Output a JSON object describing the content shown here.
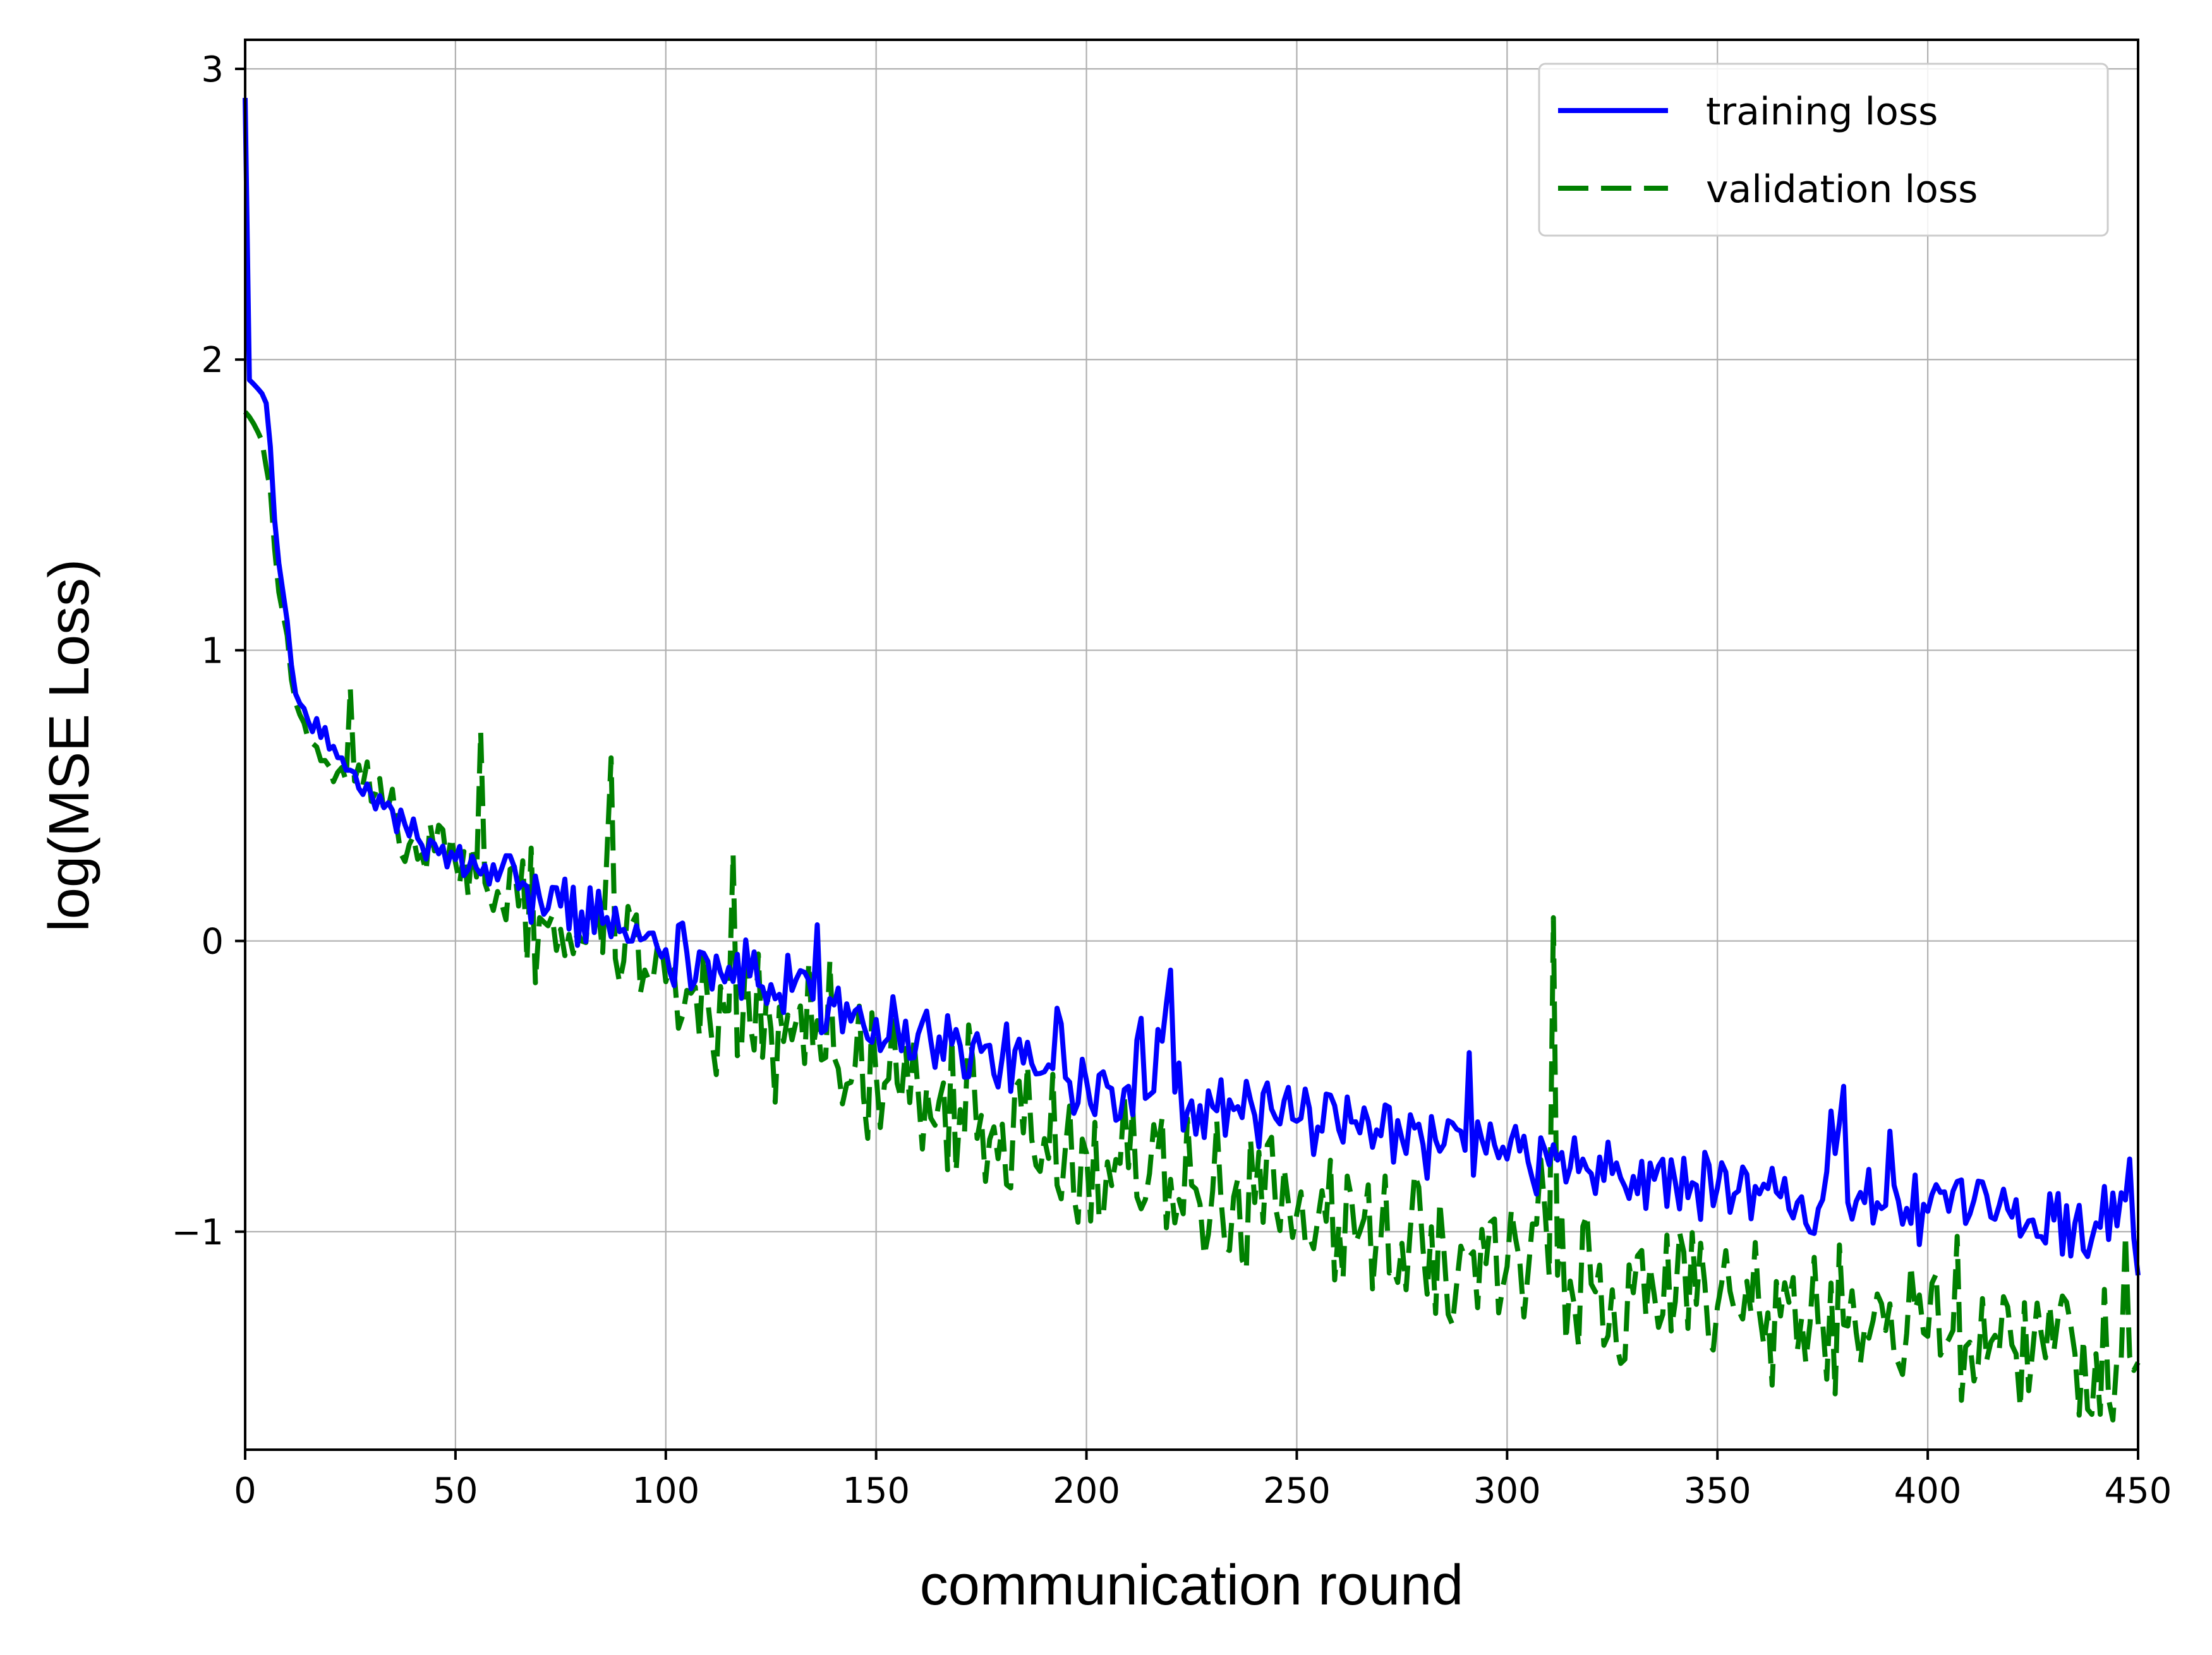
{
  "chart_data": {
    "type": "line",
    "title": "",
    "xlabel": "communication round",
    "ylabel": "log(MSE Loss)",
    "xlim": [
      0,
      450
    ],
    "ylim": [
      -1.75,
      3.1
    ],
    "xticks": [
      0,
      50,
      100,
      150,
      200,
      250,
      300,
      350,
      400,
      450
    ],
    "yticks": [
      -1,
      0,
      1,
      2,
      3
    ],
    "xtick_labels": [
      "0",
      "50",
      "100",
      "150",
      "200",
      "250",
      "300",
      "350",
      "400",
      "450"
    ],
    "ytick_labels": [
      "−1",
      "0",
      "1",
      "2",
      "3"
    ],
    "grid": true,
    "legend_position": "top-right",
    "series": [
      {
        "name": "training loss",
        "color": "#0000ff",
        "style": "solid",
        "points": [
          [
            0,
            2.9
          ],
          [
            1,
            1.93
          ],
          [
            3,
            1.9
          ],
          [
            5,
            1.85
          ],
          [
            6,
            1.7
          ],
          [
            7,
            1.45
          ],
          [
            8,
            1.3
          ],
          [
            9,
            1.2
          ],
          [
            10,
            1.1
          ],
          [
            11,
            0.95
          ],
          [
            12,
            0.85
          ],
          [
            14,
            0.8
          ],
          [
            16,
            0.72
          ],
          [
            18,
            0.7
          ],
          [
            20,
            0.66
          ],
          [
            23,
            0.63
          ],
          [
            26,
            0.58
          ],
          [
            29,
            0.54
          ],
          [
            32,
            0.5
          ],
          [
            35,
            0.45
          ],
          [
            38,
            0.4
          ],
          [
            42,
            0.33
          ],
          [
            46,
            0.3
          ],
          [
            50,
            0.28
          ],
          [
            55,
            0.25
          ],
          [
            60,
            0.21
          ],
          [
            65,
            0.18
          ],
          [
            70,
            0.15
          ],
          [
            75,
            0.12
          ],
          [
            80,
            0.1
          ],
          [
            85,
            0.06
          ],
          [
            90,
            0.04
          ],
          [
            95,
            0.01
          ],
          [
            100,
            -0.03
          ],
          [
            105,
            -0.04
          ],
          [
            110,
            -0.07
          ],
          [
            115,
            -0.09
          ],
          [
            120,
            -0.12
          ],
          [
            125,
            -0.15
          ],
          [
            130,
            -0.17
          ],
          [
            135,
            -0.2
          ],
          [
            140,
            -0.22
          ],
          [
            145,
            -0.24
          ],
          [
            150,
            -0.27
          ],
          [
            155,
            -0.29
          ],
          [
            160,
            -0.32
          ],
          [
            165,
            -0.33
          ],
          [
            170,
            -0.36
          ],
          [
            175,
            -0.38
          ],
          [
            180,
            -0.4
          ],
          [
            185,
            -0.42
          ],
          [
            190,
            -0.45
          ],
          [
            195,
            -0.47
          ],
          [
            200,
            -0.48
          ],
          [
            205,
            -0.5
          ],
          [
            210,
            -0.5
          ],
          [
            215,
            -0.53
          ],
          [
            220,
            -0.1
          ],
          [
            221,
            -0.52
          ],
          [
            225,
            -0.55
          ],
          [
            230,
            -0.57
          ],
          [
            235,
            -0.58
          ],
          [
            240,
            -0.6
          ],
          [
            245,
            -0.61
          ],
          [
            250,
            -0.62
          ],
          [
            255,
            -0.64
          ],
          [
            260,
            -0.65
          ],
          [
            265,
            -0.66
          ],
          [
            270,
            -0.67
          ],
          [
            275,
            -0.68
          ],
          [
            280,
            -0.7
          ],
          [
            285,
            -0.7
          ],
          [
            290,
            -0.72
          ],
          [
            295,
            -0.73
          ],
          [
            300,
            -0.75
          ],
          [
            305,
            -0.76
          ],
          [
            310,
            -0.77
          ],
          [
            315,
            -0.78
          ],
          [
            320,
            -0.8
          ],
          [
            325,
            -0.8
          ],
          [
            330,
            -0.81
          ],
          [
            335,
            -0.82
          ],
          [
            340,
            -0.83
          ],
          [
            345,
            -0.84
          ],
          [
            350,
            -0.85
          ],
          [
            355,
            -0.86
          ],
          [
            360,
            -0.87
          ],
          [
            365,
            -0.88
          ],
          [
            370,
            -0.88
          ],
          [
            375,
            -0.89
          ],
          [
            380,
            -0.5
          ],
          [
            381,
            -0.9
          ],
          [
            385,
            -0.9
          ],
          [
            390,
            -0.91
          ],
          [
            395,
            -0.92
          ],
          [
            400,
            -0.93
          ],
          [
            405,
            -0.93
          ],
          [
            410,
            -0.94
          ],
          [
            415,
            -0.95
          ],
          [
            420,
            -0.95
          ],
          [
            425,
            -0.96
          ],
          [
            430,
            -0.96
          ],
          [
            435,
            -0.97
          ],
          [
            440,
            -0.97
          ],
          [
            445,
            -0.98
          ],
          [
            448,
            -0.75
          ],
          [
            450,
            -1.15
          ]
        ],
        "noise_amplitude": 0.12
      },
      {
        "name": "validation loss",
        "color": "#008000",
        "style": "dashed",
        "points": [
          [
            0,
            1.82
          ],
          [
            2,
            1.78
          ],
          [
            4,
            1.72
          ],
          [
            6,
            1.55
          ],
          [
            7,
            1.35
          ],
          [
            8,
            1.2
          ],
          [
            10,
            1.05
          ],
          [
            11,
            0.9
          ],
          [
            12,
            0.82
          ],
          [
            14,
            0.75
          ],
          [
            16,
            0.68
          ],
          [
            18,
            0.62
          ],
          [
            20,
            0.6
          ],
          [
            22,
            0.58
          ],
          [
            24,
            0.55
          ],
          [
            25,
            0.87
          ],
          [
            26,
            0.55
          ],
          [
            30,
            0.48
          ],
          [
            33,
            0.44
          ],
          [
            36,
            0.4
          ],
          [
            40,
            0.36
          ],
          [
            45,
            0.31
          ],
          [
            50,
            0.27
          ],
          [
            55,
            0.22
          ],
          [
            56,
            0.72
          ],
          [
            57,
            0.2
          ],
          [
            60,
            0.17
          ],
          [
            65,
            0.12
          ],
          [
            70,
            0.08
          ],
          [
            75,
            0.04
          ],
          [
            80,
            0.0
          ],
          [
            85,
            -0.04
          ],
          [
            87,
            0.63
          ],
          [
            88,
            -0.06
          ],
          [
            90,
            -0.07
          ],
          [
            95,
            -0.1
          ],
          [
            100,
            -0.14
          ],
          [
            105,
            -0.17
          ],
          [
            110,
            -0.21
          ],
          [
            115,
            -0.24
          ],
          [
            120,
            -0.28
          ],
          [
            125,
            -0.3
          ],
          [
            130,
            -0.34
          ],
          [
            135,
            -0.37
          ],
          [
            140,
            -0.4
          ],
          [
            145,
            -0.43
          ],
          [
            150,
            -0.46
          ],
          [
            155,
            -0.49
          ],
          [
            160,
            -0.52
          ],
          [
            165,
            -0.55
          ],
          [
            170,
            -0.58
          ],
          [
            175,
            -0.6
          ],
          [
            180,
            -0.63
          ],
          [
            185,
            -0.66
          ],
          [
            190,
            -0.68
          ],
          [
            195,
            -0.71
          ],
          [
            200,
            -0.73
          ],
          [
            205,
            -0.76
          ],
          [
            210,
            -0.78
          ],
          [
            215,
            -0.8
          ],
          [
            220,
            -0.82
          ],
          [
            225,
            -0.84
          ],
          [
            230,
            -0.86
          ],
          [
            235,
            -0.88
          ],
          [
            240,
            -0.9
          ],
          [
            245,
            -0.92
          ],
          [
            250,
            -0.94
          ],
          [
            255,
            -0.96
          ],
          [
            260,
            -0.98
          ],
          [
            265,
            -1.0
          ],
          [
            270,
            -1.02
          ],
          [
            275,
            -1.04
          ],
          [
            280,
            -1.06
          ],
          [
            285,
            -1.07
          ],
          [
            290,
            -1.09
          ],
          [
            295,
            -1.11
          ],
          [
            300,
            -1.12
          ],
          [
            305,
            -1.14
          ],
          [
            310,
            -1.15
          ],
          [
            311,
            0.08
          ],
          [
            312,
            -1.15
          ],
          [
            315,
            -1.17
          ],
          [
            320,
            -1.18
          ],
          [
            325,
            -1.2
          ],
          [
            330,
            -1.21
          ],
          [
            335,
            -1.22
          ],
          [
            340,
            -1.24
          ],
          [
            345,
            -1.25
          ],
          [
            350,
            -1.26
          ],
          [
            355,
            -1.27
          ],
          [
            360,
            -1.28
          ],
          [
            365,
            -1.29
          ],
          [
            370,
            -1.3
          ],
          [
            375,
            -1.31
          ],
          [
            380,
            -1.32
          ],
          [
            385,
            -1.33
          ],
          [
            390,
            -1.34
          ],
          [
            395,
            -1.35
          ],
          [
            400,
            -1.36
          ],
          [
            405,
            -1.37
          ],
          [
            410,
            -1.38
          ],
          [
            415,
            -1.38
          ],
          [
            420,
            -1.39
          ],
          [
            425,
            -1.4
          ],
          [
            430,
            -1.41
          ],
          [
            435,
            -1.42
          ],
          [
            440,
            -1.42
          ],
          [
            445,
            -1.43
          ],
          [
            450,
            -1.45
          ]
        ],
        "noise_amplitude": 0.25
      }
    ]
  }
}
